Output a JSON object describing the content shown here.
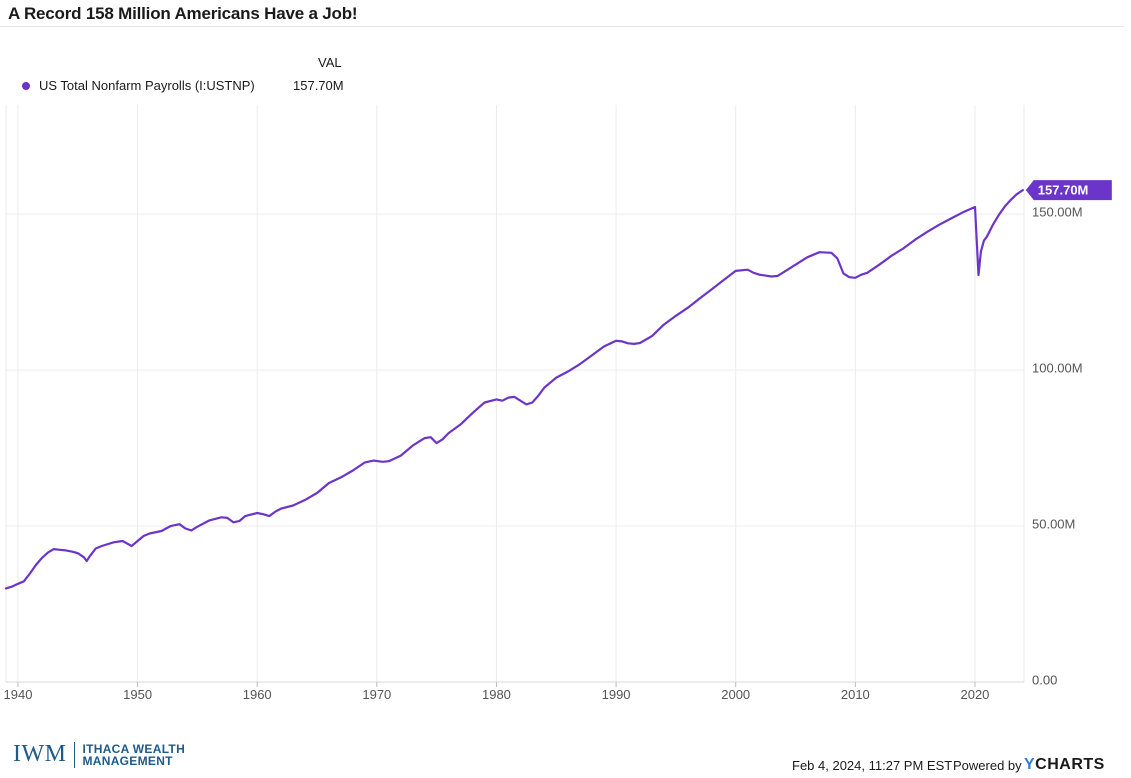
{
  "header": {
    "title": "A Record 158 Million Americans Have a Job!"
  },
  "legend": {
    "column_header": "VAL",
    "items": [
      {
        "name": "US Total Nonfarm Payrolls (I:USTNP)",
        "value": "157.70M",
        "color": "#6c35c9"
      }
    ]
  },
  "chart_data": {
    "type": "line",
    "title": "A Record 158 Million Americans Have a Job!",
    "xlabel": "",
    "ylabel": "",
    "xlim": [
      1939,
      2024.1
    ],
    "ylim": [
      0,
      185
    ],
    "x_ticks": [
      "1940",
      "1950",
      "1960",
      "1970",
      "1980",
      "1990",
      "2000",
      "2010",
      "2020"
    ],
    "y_ticks": [
      "0.00",
      "50.00M",
      "100.00M",
      "150.00M"
    ],
    "y_tick_values": [
      0,
      50,
      100,
      150
    ],
    "grid": true,
    "last_value_label": "157.70M",
    "series": [
      {
        "name": "US Total Nonfarm Payrolls (I:USTNP)",
        "color": "#6c35c9",
        "x": [
          1939.0,
          1939.5,
          1940.0,
          1940.5,
          1941.0,
          1941.5,
          1942.0,
          1942.5,
          1943.0,
          1943.5,
          1944.0,
          1944.5,
          1945.0,
          1945.5,
          1945.75,
          1946.0,
          1946.5,
          1947.0,
          1948.0,
          1948.75,
          1949.5,
          1950.0,
          1950.5,
          1951.0,
          1952.0,
          1952.75,
          1953.5,
          1954.0,
          1954.5,
          1955.0,
          1956.0,
          1957.0,
          1957.5,
          1958.0,
          1958.5,
          1959.0,
          1960.0,
          1960.5,
          1961.0,
          1961.5,
          1962.0,
          1963.0,
          1964.0,
          1965.0,
          1966.0,
          1967.0,
          1968.0,
          1969.0,
          1969.75,
          1970.5,
          1971.0,
          1972.0,
          1973.0,
          1974.0,
          1974.5,
          1975.0,
          1975.5,
          1976.0,
          1977.0,
          1978.0,
          1979.0,
          1980.0,
          1980.5,
          1981.0,
          1981.5,
          1982.0,
          1982.5,
          1983.0,
          1983.5,
          1984.0,
          1985.0,
          1986.0,
          1987.0,
          1988.0,
          1989.0,
          1990.0,
          1990.5,
          1991.0,
          1991.5,
          1992.0,
          1993.0,
          1994.0,
          1995.0,
          1996.0,
          1997.0,
          1998.0,
          1999.0,
          2000.0,
          2001.0,
          2001.5,
          2002.0,
          2003.0,
          2003.5,
          2004.0,
          2005.0,
          2006.0,
          2007.0,
          2008.0,
          2008.5,
          2009.0,
          2009.5,
          2010.0,
          2010.5,
          2011.0,
          2012.0,
          2013.0,
          2014.0,
          2015.0,
          2016.0,
          2017.0,
          2018.0,
          2019.0,
          2020.0,
          2020.3,
          2020.5,
          2020.75,
          2021.0,
          2021.5,
          2022.0,
          2022.5,
          2023.0,
          2023.5,
          2024.0
        ],
        "y": [
          30.0,
          30.6,
          31.5,
          32.3,
          34.8,
          37.5,
          39.8,
          41.5,
          42.6,
          42.4,
          42.2,
          41.8,
          41.3,
          40.0,
          38.8,
          40.3,
          42.8,
          43.6,
          44.8,
          45.2,
          43.6,
          45.2,
          46.8,
          47.6,
          48.4,
          50.0,
          50.6,
          49.2,
          48.6,
          49.8,
          51.8,
          52.8,
          52.6,
          51.2,
          51.6,
          53.2,
          54.2,
          53.8,
          53.2,
          54.6,
          55.6,
          56.6,
          58.4,
          60.6,
          63.8,
          65.6,
          67.8,
          70.4,
          71.0,
          70.6,
          70.8,
          72.6,
          75.8,
          78.2,
          78.5,
          76.6,
          77.8,
          79.8,
          82.6,
          86.2,
          89.6,
          90.6,
          90.2,
          91.2,
          91.4,
          90.2,
          89.0,
          89.6,
          91.8,
          94.4,
          97.6,
          99.6,
          102.0,
          104.8,
          107.6,
          109.4,
          109.2,
          108.6,
          108.4,
          108.7,
          110.9,
          114.6,
          117.4,
          120.0,
          123.0,
          125.9,
          128.9,
          131.8,
          132.2,
          131.2,
          130.6,
          130.0,
          130.2,
          131.4,
          133.8,
          136.2,
          137.8,
          137.6,
          135.8,
          131.0,
          129.8,
          129.6,
          130.6,
          131.2,
          133.8,
          136.6,
          139.0,
          141.8,
          144.3,
          146.6,
          148.6,
          150.6,
          152.3,
          130.5,
          138.0,
          141.5,
          142.8,
          146.6,
          149.8,
          152.5,
          154.6,
          156.4,
          157.7
        ]
      }
    ]
  },
  "footer": {
    "logo_mark": "IWM",
    "logo_line1": "ITHACA WEALTH",
    "logo_line2": "MANAGEMENT",
    "timestamp": "Feb 4, 2024, 11:27 PM EST",
    "powered_by": "Powered by",
    "brand_y": "Y",
    "brand_rest": "CHARTS"
  }
}
